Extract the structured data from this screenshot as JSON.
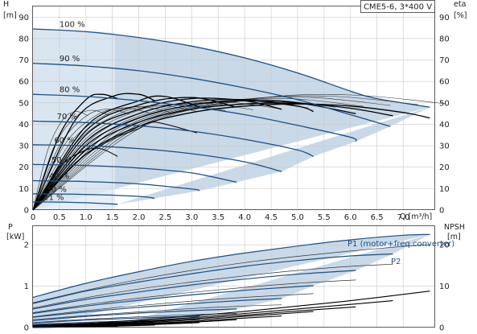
{
  "title": "CME5-6, 3*400 V",
  "chart_data": [
    {
      "type": "line",
      "xlabel": "Q [m³/h]",
      "xlim": [
        0,
        7.6
      ],
      "xticks": [
        "0",
        "0.5",
        "1.0",
        "1.5",
        "2.0",
        "2.5",
        "3.0",
        "3.5",
        "4.0",
        "4.5",
        "5.0",
        "5.5",
        "6.0",
        "6.5",
        "7.0"
      ],
      "ylabel_left": "H",
      "yunit_left": "[m]",
      "ylim_left": [
        0,
        95
      ],
      "yticks_left": [
        "0",
        "10",
        "20",
        "30",
        "40",
        "50",
        "60",
        "70",
        "80",
        "90"
      ],
      "ylabel_right": "eta",
      "yunit_right": "[%]",
      "yticks_right": [
        "0",
        "10",
        "20",
        "30",
        "40",
        "50",
        "60",
        "70",
        "80",
        "90"
      ],
      "grid": true,
      "speed_labels": [
        "100 %",
        "90 %",
        "80 %",
        "70 %",
        "60 %",
        "50 %",
        "40 %",
        "30 %",
        "21 %"
      ],
      "head_curves": [
        {
          "speed": "100 %",
          "x": [
            0,
            1,
            2,
            3,
            4,
            5,
            6,
            6.5,
            7.5
          ],
          "y": [
            84.5,
            83.2,
            80.5,
            76.5,
            71,
            64,
            55.5,
            52,
            48
          ]
        },
        {
          "speed": "90 %",
          "x": [
            0,
            1,
            2,
            3,
            4,
            5,
            6,
            6.75
          ],
          "y": [
            68.5,
            67.2,
            65,
            61.5,
            57,
            51.5,
            44.5,
            39
          ]
        },
        {
          "speed": "80 %",
          "x": [
            0,
            1,
            2,
            3,
            4,
            5,
            6,
            6.1
          ],
          "y": [
            54,
            53,
            51,
            48.2,
            44.5,
            39.5,
            34,
            32
          ]
        },
        {
          "speed": "70 %",
          "x": [
            0,
            1,
            2,
            3,
            4,
            5,
            5.3
          ],
          "y": [
            41.5,
            40.8,
            39.3,
            36.8,
            33,
            28,
            25
          ]
        },
        {
          "speed": "60 %",
          "x": [
            0,
            1,
            2,
            3,
            4,
            4.7
          ],
          "y": [
            30.5,
            30,
            28.7,
            26.3,
            22.5,
            18
          ]
        },
        {
          "speed": "50 %",
          "x": [
            0,
            1,
            2,
            3,
            3.85
          ],
          "y": [
            21.3,
            20.8,
            19.6,
            17.3,
            13
          ]
        },
        {
          "speed": "40 %",
          "x": [
            0,
            1,
            2,
            3,
            3.15
          ],
          "y": [
            13.7,
            13.3,
            12.2,
            9.8,
            9
          ]
        },
        {
          "speed": "30 %",
          "x": [
            0,
            1,
            2,
            2.3
          ],
          "y": [
            7.6,
            7.3,
            6.4,
            5.5
          ]
        },
        {
          "speed": "21 %",
          "x": [
            0,
            0.5,
            1,
            1.6
          ],
          "y": [
            3.8,
            3.7,
            3.4,
            2.7
          ]
        }
      ],
      "efficiency_curves": [
        {
          "speed": "100 %",
          "x": [
            0,
            1,
            2,
            3,
            4,
            5,
            6,
            7,
            7.5
          ],
          "y": [
            0,
            26,
            39,
            45.5,
            48.5,
            49.5,
            48.5,
            45.5,
            43
          ]
        },
        {
          "speed": "90 %",
          "x": [
            0,
            1,
            2,
            3,
            4,
            5,
            6,
            6.8
          ],
          "y": [
            0,
            28,
            41,
            47,
            49.5,
            49.8,
            47.5,
            44
          ]
        },
        {
          "speed": "80 %",
          "x": [
            0,
            1,
            2,
            3,
            4,
            5,
            6.1
          ],
          "y": [
            0,
            30,
            43,
            49,
            51,
            50,
            45
          ]
        },
        {
          "speed": "70 %",
          "x": [
            0,
            1,
            2,
            3,
            4,
            5,
            5.3
          ],
          "y": [
            0,
            32,
            45,
            50.5,
            51.5,
            48.5,
            46
          ]
        },
        {
          "speed": "60 %",
          "x": [
            0,
            1,
            2,
            3,
            4,
            4.7
          ],
          "y": [
            0,
            35,
            47,
            52,
            51,
            47
          ]
        },
        {
          "speed": "50 %",
          "x": [
            0,
            1,
            2,
            3,
            3.85
          ],
          "y": [
            0,
            37,
            49,
            52.5,
            48
          ]
        },
        {
          "speed": "40 %",
          "x": [
            0,
            1,
            2,
            2.5,
            3.15
          ],
          "y": [
            0,
            39,
            51,
            53,
            48
          ]
        },
        {
          "speed": "30 %",
          "x": [
            0,
            0.8,
            1.5,
            2,
            2.3
          ],
          "y": [
            0,
            42,
            53,
            54,
            51
          ]
        },
        {
          "speed": "21 %",
          "x": [
            0,
            0.5,
            1,
            1.3,
            1.6
          ],
          "y": [
            0,
            35,
            51.5,
            54,
            52
          ]
        }
      ],
      "small_efficiency_curves": [
        {
          "x": [
            0,
            0.5,
            1,
            1.3,
            1.6
          ],
          "y": [
            0,
            20,
            28,
            28.5,
            25
          ]
        },
        {
          "x": [
            0,
            0.8,
            1.5,
            2,
            2.3,
            3.1
          ],
          "y": [
            0,
            22,
            33,
            38,
            41,
            36
          ]
        }
      ]
    },
    {
      "type": "line",
      "ylabel_left": "P",
      "yunit_left": "[kW]",
      "ylim_left": [
        0,
        2.45
      ],
      "yticks_left": [
        "0",
        "1",
        "2"
      ],
      "ylabel_right": "NPSH",
      "yunit_right": "[m]",
      "yticks_right": [
        "0",
        "10",
        "20"
      ],
      "grid": true,
      "annotations": [
        "P1 (motor+freq.converter)",
        "P2"
      ],
      "p1_curves": [
        {
          "speed": "100 %",
          "x": [
            0,
            1,
            2,
            3,
            4,
            5,
            6,
            7,
            7.5
          ],
          "y": [
            0.73,
            1.07,
            1.35,
            1.6,
            1.8,
            1.97,
            2.12,
            2.23,
            2.25
          ]
        },
        {
          "speed": "90 %",
          "x": [
            0,
            1,
            2,
            3,
            4,
            5,
            6,
            6.8
          ],
          "y": [
            0.58,
            0.88,
            1.1,
            1.3,
            1.48,
            1.62,
            1.73,
            1.78
          ]
        },
        {
          "speed": "80 %",
          "x": [
            0,
            1,
            2,
            3,
            4,
            5,
            6.1
          ],
          "y": [
            0.45,
            0.68,
            0.86,
            1.03,
            1.17,
            1.29,
            1.38
          ]
        },
        {
          "speed": "70 %",
          "x": [
            0,
            1,
            2,
            3,
            4,
            5,
            5.3
          ],
          "y": [
            0.34,
            0.52,
            0.66,
            0.79,
            0.9,
            0.99,
            1.01
          ]
        },
        {
          "speed": "60 %",
          "x": [
            0,
            1,
            2,
            3,
            4,
            4.7
          ],
          "y": [
            0.25,
            0.38,
            0.49,
            0.58,
            0.66,
            0.7
          ]
        },
        {
          "speed": "50 %",
          "x": [
            0,
            1,
            2,
            3,
            3.85
          ],
          "y": [
            0.17,
            0.27,
            0.35,
            0.41,
            0.45
          ]
        },
        {
          "speed": "40 %",
          "x": [
            0,
            1,
            2,
            3,
            3.15
          ],
          "y": [
            0.11,
            0.18,
            0.23,
            0.27,
            0.28
          ]
        },
        {
          "speed": "30 %",
          "x": [
            0,
            1,
            2,
            2.3
          ],
          "y": [
            0.07,
            0.11,
            0.14,
            0.15
          ]
        },
        {
          "speed": "21 %",
          "x": [
            0,
            0.5,
            1,
            1.6
          ],
          "y": [
            0.04,
            0.05,
            0.06,
            0.07
          ]
        }
      ],
      "p2_curves": [
        {
          "speed": "100 %",
          "x": [
            0,
            1,
            2,
            3,
            4,
            5,
            6,
            7,
            7.5
          ],
          "y": [
            0.6,
            0.9,
            1.16,
            1.38,
            1.57,
            1.72,
            1.85,
            1.96,
            2.0
          ]
        },
        {
          "speed": "90 %",
          "x": [
            0,
            1,
            2,
            3,
            4,
            5,
            6,
            6.8
          ],
          "y": [
            0.47,
            0.72,
            0.93,
            1.1,
            1.25,
            1.38,
            1.48,
            1.53
          ]
        },
        {
          "speed": "80 %",
          "x": [
            0,
            1,
            2,
            3,
            4,
            5,
            6.1
          ],
          "y": [
            0.36,
            0.55,
            0.71,
            0.85,
            0.97,
            1.07,
            1.15
          ]
        },
        {
          "speed": "70 %",
          "x": [
            0,
            1,
            2,
            3,
            4,
            5,
            5.3
          ],
          "y": [
            0.26,
            0.41,
            0.53,
            0.64,
            0.73,
            0.8,
            0.82
          ]
        },
        {
          "speed": "60 %",
          "x": [
            0,
            1,
            2,
            3,
            4,
            4.7
          ],
          "y": [
            0.19,
            0.29,
            0.38,
            0.46,
            0.52,
            0.55
          ]
        },
        {
          "speed": "50 %",
          "x": [
            0,
            1,
            2,
            3,
            3.85
          ],
          "y": [
            0.12,
            0.2,
            0.26,
            0.31,
            0.34
          ]
        },
        {
          "speed": "40 %",
          "x": [
            0,
            1,
            2,
            3,
            3.15
          ],
          "y": [
            0.08,
            0.13,
            0.17,
            0.2,
            0.21
          ]
        },
        {
          "speed": "30 %",
          "x": [
            0,
            1,
            2,
            2.3
          ],
          "y": [
            0.05,
            0.08,
            0.1,
            0.11
          ]
        },
        {
          "speed": "21 %",
          "x": [
            0,
            0.5,
            1,
            1.6
          ],
          "y": [
            0.02,
            0.03,
            0.04,
            0.05
          ]
        }
      ],
      "npsh_curves": [
        {
          "speed": "100 %",
          "x": [
            0,
            1,
            2,
            3,
            4,
            5,
            6,
            7.5
          ],
          "y": [
            0.05,
            0.1,
            0.18,
            0.28,
            0.39,
            0.52,
            0.65,
            0.88
          ]
        },
        {
          "speed": "90 %",
          "x": [
            0,
            1,
            2,
            3,
            4,
            5,
            6,
            6.8
          ],
          "y": [
            0.04,
            0.08,
            0.15,
            0.24,
            0.34,
            0.45,
            0.56,
            0.65
          ]
        },
        {
          "speed": "80 %",
          "x": [
            0,
            1,
            2,
            3,
            4,
            5,
            6.1
          ],
          "y": [
            0.03,
            0.07,
            0.13,
            0.21,
            0.3,
            0.4,
            0.5
          ]
        },
        {
          "speed": "70 %",
          "x": [
            0,
            1,
            2,
            3,
            4,
            5,
            5.3
          ],
          "y": [
            0.03,
            0.06,
            0.11,
            0.18,
            0.27,
            0.36,
            0.39
          ]
        },
        {
          "speed": "60 %",
          "x": [
            0,
            1,
            2,
            3,
            4,
            4.7
          ],
          "y": [
            0.02,
            0.05,
            0.09,
            0.15,
            0.23,
            0.28
          ]
        },
        {
          "speed": "50 %",
          "x": [
            0,
            1,
            2,
            3,
            3.85
          ],
          "y": [
            0.02,
            0.04,
            0.08,
            0.13,
            0.19
          ]
        },
        {
          "speed": "40 %",
          "x": [
            0,
            1,
            2,
            3,
            3.15
          ],
          "y": [
            0.01,
            0.03,
            0.06,
            0.11,
            0.12
          ]
        },
        {
          "speed": "30 %",
          "x": [
            0,
            1,
            2,
            2.3
          ],
          "y": [
            0.01,
            0.02,
            0.05,
            0.06
          ]
        },
        {
          "speed": "21 %",
          "x": [
            0,
            0.5,
            1,
            1.6
          ],
          "y": [
            0.0,
            0.01,
            0.02,
            0.03
          ]
        }
      ]
    }
  ],
  "colors": {
    "head_curve": "#1a4f86",
    "efficiency_curve": "#000000",
    "thin_curve": "#333333",
    "operating_region": "#c9d9e8",
    "region_top_left": "#dde9f4",
    "grid": "#c9c9c9",
    "annotation": "#1a4f86"
  }
}
